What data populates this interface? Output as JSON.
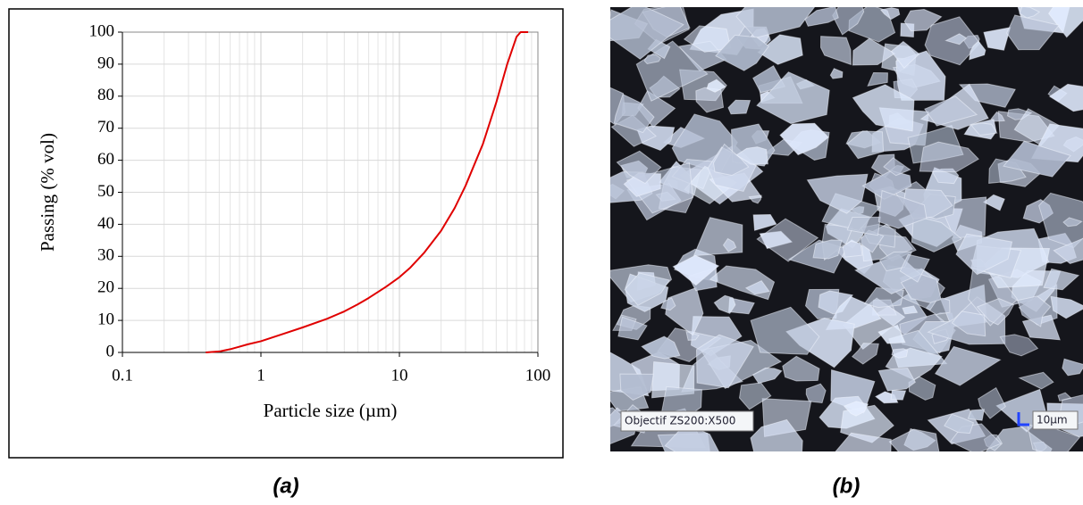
{
  "chart_data": {
    "type": "line",
    "xlabel": "Particle size (µm)",
    "ylabel": "Passing (% vol)",
    "xscale": "log",
    "xlim": [
      0.1,
      100
    ],
    "ylim": [
      0,
      100
    ],
    "xticks": [
      0.1,
      1,
      10,
      100
    ],
    "yticks": [
      0,
      10,
      20,
      30,
      40,
      50,
      60,
      70,
      80,
      90,
      100
    ],
    "grid": true,
    "minor_grid": true,
    "series": [
      {
        "color": "#e00000",
        "x": [
          0.4,
          0.5,
          0.6,
          0.7,
          0.8,
          1,
          1.5,
          2,
          3,
          4,
          5,
          6,
          8,
          10,
          12,
          15,
          20,
          25,
          30,
          40,
          50,
          60,
          70,
          75,
          85
        ],
        "values": [
          0,
          0.3,
          1,
          1.8,
          2.5,
          3.5,
          6,
          7.8,
          10.5,
          12.8,
          15,
          17,
          20.5,
          23.5,
          26.5,
          31,
          38,
          45,
          52,
          65,
          78,
          90,
          98.5,
          100,
          100
        ]
      }
    ]
  },
  "panel_a_caption": "(a)",
  "image_b": {
    "overlay_label": "Objectif ZS200:X500",
    "scale_bar_label": "10µm",
    "caption": "(b)"
  }
}
